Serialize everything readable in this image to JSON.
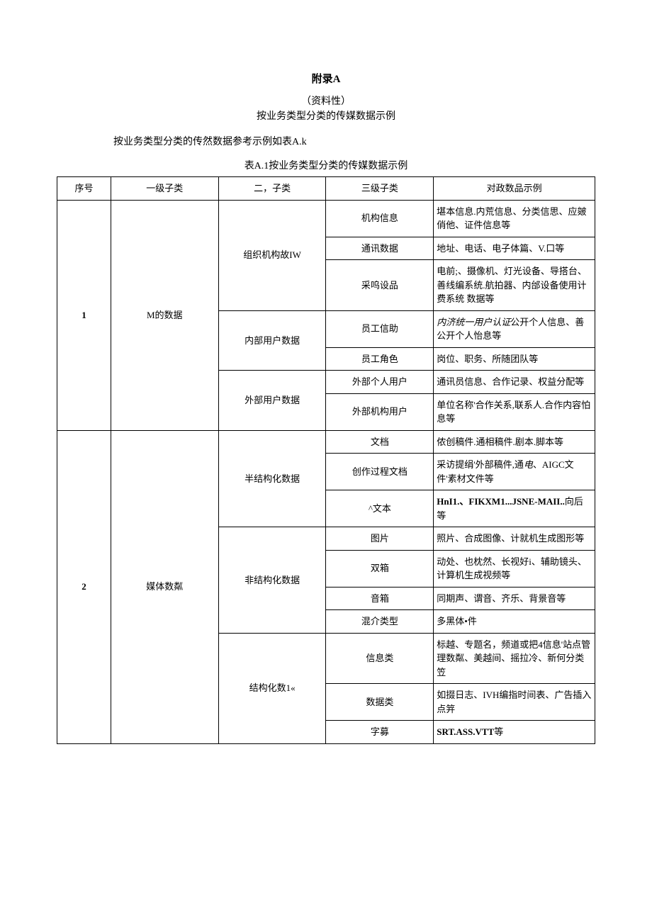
{
  "appendix_label": "附录A",
  "subtitle_line1": "（资料性）",
  "subtitle_line2": "按业务类型分类的传媒数据示例",
  "intro_text": "按业务类型分类的传然数据参考示例如表A.k",
  "table_caption": "表A.1按业务类型分类的传媒数据示例",
  "headers": {
    "h1": "序号",
    "h2": "一级子类",
    "h3": "二，子类",
    "h4": "三级子类",
    "h5": "对政数品示例"
  },
  "row1": {
    "seq": "1",
    "lvl1": "M的数据",
    "lvl2a": "组织机构故IW",
    "lvl3a1": "机构信息",
    "ex_a1": "堪本信息.内荒信息、分类信思、应皴俏他、证件信息等",
    "lvl3a2": "通讯数据",
    "ex_a2": "地址、电话、电子体篇、V.口等",
    "lvl3a3": "采呜设品",
    "ex_a3": "电前;、摄像机、灯光设备、导搭台、善线编系统.航拍器、内邰设备使用计费系统\n数据等",
    "lvl2b": "内部用户数据",
    "lvl3b1": "员工信助",
    "ex_b1_i": "内济统一用户认证",
    "ex_b1_rest": "公开个人信息、善公开个人怡息等",
    "lvl3b2": "员工角色",
    "ex_b2": "岗位、职务、所随团队等",
    "lvl2c": "外部用户数据",
    "lvl3c1": "外部个人用户",
    "ex_c1": "通讯员信息、合作记录、权益分配等",
    "lvl3c2": "外部机构用户",
    "ex_c2": "单位名称'合作关系,联系人.合作内容怕息等"
  },
  "row2": {
    "seq": "2",
    "lvl1": "媒体数粼",
    "lvl2a": "半结构化数据",
    "lvl3a1": "文档",
    "ex_a1": "侬创稿件.通相稿件.剧本.脚本等",
    "lvl3a2": "创作过程文档",
    "ex_a2_pre": "采访提绢'外部稿件,通",
    "ex_a2_i": "电",
    "ex_a2_mid": "、AIGC文件'素材文件等",
    "lvl3a3": "^文本",
    "ex_a3_b": "HnI1.、FIKXM1...JSNE-MAII..",
    "ex_a3_rest": "向后等",
    "lvl2b": "非结构化数据",
    "lvl3b1": "图片",
    "ex_b1": "照片、合成图像、计就机生成图形等",
    "lvl3b2": "双箱",
    "ex_b2": "动处、也枕然、长视好i、辅助镜头、计算机生成视频等",
    "lvl3b3": "音箱",
    "ex_b3": "同期声、谓音、齐乐、背景音等",
    "lvl3b4": "混介类型",
    "ex_b4": "多黑体•件",
    "lvl2c": "结构化数1«",
    "lvl3c1": "信息类",
    "ex_c1": "标越、专题名，频道或把4信息'站点管理数粼、美越间、摇拉冷、新何分类笠",
    "lvl3c2": "数据类",
    "ex_c2": "如掇日志、IVH编指时间表、广告插入点笄",
    "lvl3c3": "字募",
    "ex_c3_b": "SRT.ASS.VTT",
    "ex_c3_rest": "等"
  }
}
